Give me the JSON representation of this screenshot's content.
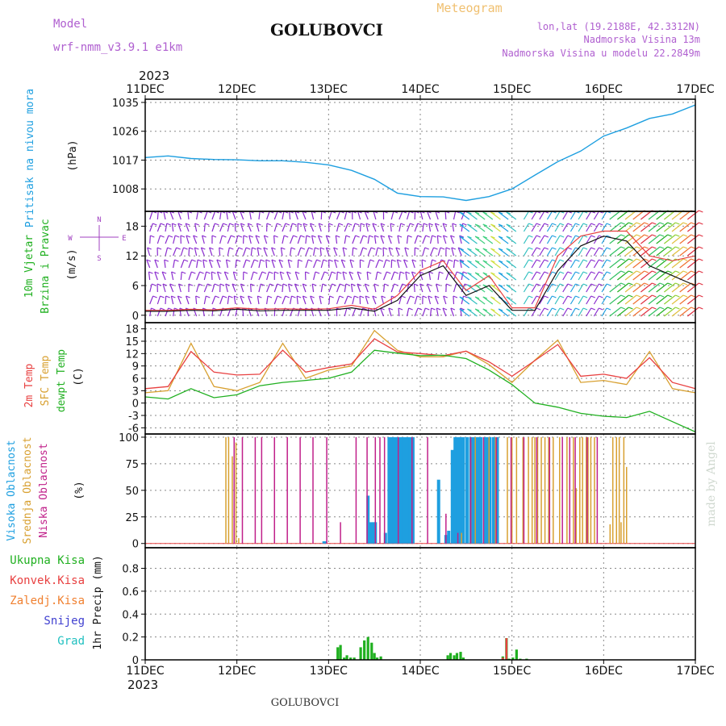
{
  "header": {
    "model_label": "Model",
    "model_name": "wrf-nmm_v3.9.1 e1km",
    "station": "GOLUBOVCI",
    "product": "Meteogram",
    "coords": "lon,lat (19.2188E, 42.3312N)",
    "elevation": "Nadmorska Visina 13m",
    "model_elevation": "Nadmorska Visina u modelu 22.2849m",
    "year": "2023",
    "footer_station": "GOLUBOVCI",
    "credit": "made by Angel"
  },
  "colors": {
    "pressure": "#1e9fe0",
    "wind_label": "#20b020",
    "compass": "#a040c0",
    "temp_2m": "#e84040",
    "temp_sfc": "#d8a030",
    "dewpoint": "#20b020",
    "cloud_high": "#1e9fe0",
    "cloud_mid": "#d8a030",
    "cloud_low": "#c0208a",
    "precip_total": "#20b020",
    "precip_conv": "#e84040",
    "precip_frozen": "#f08030",
    "precip_snow": "#4040d0",
    "precip_hail": "#20c0c0",
    "grid": "#888888"
  },
  "chart_data": [
    {
      "type": "line",
      "panel": "pressure",
      "ylabel_lines": [
        "Pritisak na nivou mora",
        "(hPa)"
      ],
      "unit_label": "(hPa)",
      "yticks": [
        1008,
        1017,
        1026,
        1035
      ],
      "ylim": [
        1001,
        1036
      ],
      "x_days": [
        0,
        0.25,
        0.5,
        0.75,
        1,
        1.25,
        1.5,
        1.75,
        2,
        2.25,
        2.5,
        2.75,
        3,
        3.25,
        3.5,
        3.75,
        4,
        4.25,
        4.5,
        4.75,
        5,
        5.25,
        5.5,
        5.75,
        6
      ],
      "series": [
        {
          "values": [
            1017.8,
            1018.3,
            1017.5,
            1017.2,
            1017.1,
            1016.8,
            1016.8,
            1016.3,
            1015.5,
            1013.8,
            1011,
            1006.7,
            1005.6,
            1005.5,
            1004.4,
            1005.6,
            1008,
            1012.3,
            1016.5,
            1019.8,
            1024.5,
            1027,
            1030,
            1031.4,
            1034.2
          ]
        }
      ]
    },
    {
      "type": "scatter",
      "panel": "wind",
      "ylabel_lines": [
        "10m Vjetar",
        "Brzina i Pravac",
        "(m/s)"
      ],
      "unit_label": "(m/s)",
      "compass": {
        "n": "N",
        "s": "S",
        "e": "E",
        "w": "W"
      },
      "yticks": [
        0,
        6,
        12,
        18
      ],
      "ylim": [
        -1.5,
        21
      ],
      "x_days": [
        0,
        0.25,
        0.5,
        0.75,
        1,
        1.25,
        1.5,
        1.75,
        2,
        2.25,
        2.5,
        2.75,
        3,
        3.25,
        3.5,
        3.75,
        4,
        4.25,
        4.5,
        4.75,
        5,
        5.25,
        5.5,
        5.75,
        6
      ],
      "series": [
        {
          "name": "speed",
          "values": [
            0.8,
            0.8,
            1,
            0.9,
            1.2,
            0.9,
            1,
            1,
            1,
            1.5,
            0.8,
            3,
            8,
            10,
            4,
            6,
            1,
            1,
            9,
            14,
            16,
            15,
            10,
            8,
            6
          ]
        },
        {
          "name": "gust",
          "values": [
            1,
            1,
            1.2,
            1.1,
            1.5,
            1.2,
            1.3,
            1.2,
            1.3,
            2,
            1.2,
            4,
            9,
            11,
            5,
            8,
            1.5,
            1.5,
            12,
            16,
            17,
            17,
            12,
            11,
            12
          ]
        }
      ]
    },
    {
      "type": "line",
      "panel": "temperature",
      "ylabel_lines": [
        "2m Temp",
        "SFC Temp",
        "dewpt Temp",
        "(C)"
      ],
      "unit_label": "(C)",
      "yticks": [
        -6,
        -3,
        0,
        3,
        6,
        9,
        12,
        15,
        18
      ],
      "ylim": [
        -7.5,
        19.5
      ],
      "x_days": [
        0,
        0.25,
        0.5,
        0.75,
        1,
        1.25,
        1.5,
        1.75,
        2,
        2.25,
        2.5,
        2.75,
        3,
        3.25,
        3.5,
        3.75,
        4,
        4.25,
        4.5,
        4.75,
        5,
        5.25,
        5.5,
        5.75,
        6
      ],
      "series": [
        {
          "name": "2m Temp",
          "values": [
            3.5,
            4,
            12.5,
            7.5,
            6.8,
            7,
            12.8,
            7.5,
            8.6,
            9.5,
            15.6,
            12.4,
            12,
            11.5,
            12.6,
            10,
            6.5,
            10.3,
            14.2,
            6.5,
            7,
            6,
            11,
            5,
            3.5
          ]
        },
        {
          "name": "SFC Temp",
          "values": [
            2.5,
            3,
            14.5,
            4,
            3,
            5,
            14.5,
            6,
            8,
            9,
            17.6,
            12.8,
            11.2,
            11.2,
            12.6,
            9.3,
            5,
            10.4,
            15.3,
            5,
            5.5,
            4.5,
            12.5,
            3.5,
            2.5
          ]
        },
        {
          "name": "dewpt Temp",
          "values": [
            1.5,
            1,
            3.5,
            1.3,
            2,
            4.2,
            5,
            5.5,
            6,
            7.5,
            12.8,
            12.1,
            11.5,
            11.6,
            10.8,
            8,
            4.5,
            0,
            -1,
            -2.5,
            -3.2,
            -3.5,
            -2,
            -4.5,
            -7
          ]
        }
      ]
    },
    {
      "type": "bar",
      "panel": "clouds",
      "ylabel_lines": [
        "Visoka Oblacnost",
        "Srednja Oblacnost",
        "Niska Oblacnost",
        "(%)"
      ],
      "unit_label": "(%)",
      "yticks": [
        0,
        25,
        50,
        75,
        100
      ],
      "ylim": [
        -4,
        103
      ],
      "series": [
        {
          "name": "Visoka Oblacnost",
          "x_days": [
            1.95,
            1.96,
            2.43,
            2.46,
            2.49,
            2.51,
            2.62,
            2.66,
            2.68,
            2.71,
            2.74,
            2.77,
            2.8,
            2.83,
            2.86,
            2.89,
            2.92,
            3.2,
            3.28,
            3.31,
            3.35,
            3.38,
            3.41,
            3.44,
            3.47,
            3.51,
            3.55,
            3.57,
            3.6,
            3.63,
            3.66,
            3.7,
            3.73,
            3.76,
            3.8,
            3.84
          ],
          "values": [
            2,
            2,
            45,
            20,
            20,
            20,
            10,
            100,
            100,
            100,
            100,
            100,
            100,
            100,
            100,
            100,
            100,
            60,
            8,
            12,
            88,
            100,
            100,
            100,
            100,
            100,
            100,
            100,
            100,
            100,
            100,
            100,
            100,
            100,
            100,
            100
          ]
        },
        {
          "name": "Srednja Oblacnost",
          "x_days": [
            0.88,
            0.91,
            0.95,
            0.99,
            1.02,
            3.45,
            3.55,
            3.6,
            3.75,
            3.82,
            3.95,
            4.0,
            4.05,
            4.12,
            4.18,
            4.22,
            4.25,
            4.28,
            4.32,
            4.36,
            4.4,
            4.45,
            4.52,
            4.6,
            4.67,
            4.7,
            4.74,
            4.77,
            4.81,
            4.83,
            4.86,
            4.9,
            5.07,
            5.1,
            5.14,
            5.17,
            5.19,
            5.22,
            5.25
          ],
          "values": [
            100,
            100,
            82,
            95,
            5,
            10,
            95,
            100,
            100,
            100,
            100,
            100,
            100,
            100,
            100,
            100,
            100,
            100,
            100,
            100,
            100,
            100,
            100,
            100,
            100,
            52,
            100,
            100,
            100,
            100,
            100,
            100,
            18,
            100,
            100,
            100,
            20,
            100,
            72
          ]
        },
        {
          "name": "Niska Oblacnost",
          "x_days": [
            0.97,
            1.06,
            1.2,
            1.27,
            1.41,
            1.55,
            1.69,
            1.83,
            1.98,
            2.13,
            2.3,
            2.42,
            2.51,
            2.56,
            2.61,
            2.76,
            2.91,
            3.08,
            3.28,
            3.41,
            3.55,
            3.69,
            3.83,
            3.99,
            4.13,
            4.27,
            4.41,
            4.55,
            4.63,
            4.69,
            4.82,
            4.93
          ],
          "values": [
            100,
            100,
            100,
            100,
            100,
            100,
            100,
            100,
            100,
            20,
            100,
            100,
            100,
            100,
            100,
            100,
            100,
            100,
            28,
            10,
            100,
            100,
            100,
            100,
            100,
            100,
            100,
            100,
            100,
            100,
            100,
            100
          ]
        }
      ]
    },
    {
      "type": "bar",
      "panel": "precipitation",
      "ylabel_lines": [
        "1hr Precip (mm)"
      ],
      "unit_label": "1hr Precip (mm)",
      "legend": [
        "Ukupna Kisa",
        "Konvek.Kisa",
        "Zaledj.Kisa",
        "Snijeg",
        "Grad"
      ],
      "yticks": [
        0,
        0.2,
        0.4,
        0.6,
        0.8
      ],
      "ylim": [
        0,
        0.98
      ],
      "x_days": [
        2.1,
        2.13,
        2.17,
        2.2,
        2.24,
        2.28,
        2.35,
        2.39,
        2.43,
        2.47,
        2.5,
        2.53,
        2.57,
        3.3,
        3.33,
        3.37,
        3.4,
        3.44,
        3.47,
        3.9,
        3.94,
        3.97,
        4.01,
        4.05,
        4.09,
        4.12,
        4.16,
        4.2,
        4.24
      ],
      "series": [
        {
          "name": "Ukupna Kisa",
          "values": [
            0.11,
            0.13,
            0.02,
            0.04,
            0.02,
            0.02,
            0.11,
            0.17,
            0.2,
            0.15,
            0.06,
            0.02,
            0.03,
            0.04,
            0.06,
            0.04,
            0.06,
            0.07,
            0.02,
            0.03,
            0.19,
            0.01,
            0.02,
            0.09,
            0.01,
            0.0,
            0.01,
            0.0,
            0.0
          ]
        },
        {
          "name": "Konvek.Kisa",
          "values": [
            0,
            0,
            0,
            0,
            0,
            0,
            0,
            0,
            0,
            0,
            0,
            0,
            0,
            0,
            0,
            0,
            0,
            0,
            0,
            0.02,
            0.19,
            0,
            0,
            0,
            0,
            0,
            0,
            0,
            0
          ]
        }
      ]
    }
  ],
  "time_axis": {
    "labels": [
      "11DEC",
      "12DEC",
      "13DEC",
      "14DEC",
      "15DEC",
      "16DEC",
      "17DEC"
    ]
  }
}
